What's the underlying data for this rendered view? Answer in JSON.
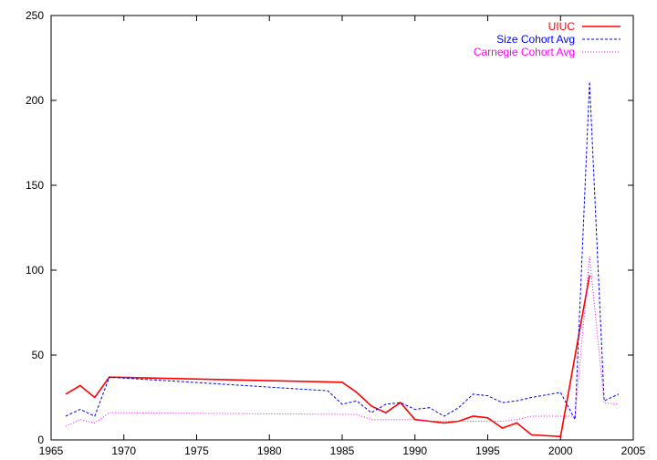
{
  "chart_data": {
    "type": "line",
    "title": "",
    "xlabel": "",
    "ylabel": "",
    "xlim": [
      1966,
      2005
    ],
    "ylim": [
      0,
      250
    ],
    "x_ticks": [
      1965,
      1970,
      1975,
      1980,
      1985,
      1990,
      1995,
      2000,
      2005
    ],
    "y_ticks": [
      0,
      50,
      100,
      150,
      200,
      250
    ],
    "x_tick_labels": [
      "1965",
      "1970",
      "1975",
      "1980",
      "1985",
      "1990",
      "1995",
      "2000",
      "2005"
    ],
    "y_tick_labels": [
      "0",
      "50",
      "100",
      "150",
      "200",
      "250"
    ],
    "grid": false,
    "legend_position": "top-right",
    "series": [
      {
        "name": "UIUC",
        "color": "#ff0000",
        "style": "solid",
        "points": [
          [
            1966,
            27
          ],
          [
            1967,
            32
          ],
          [
            1968,
            25
          ],
          [
            1969,
            37
          ],
          [
            1985,
            34
          ],
          [
            1986,
            28
          ],
          [
            1987,
            20
          ],
          [
            1988,
            16
          ],
          [
            1989,
            22
          ],
          [
            1990,
            12
          ],
          [
            1991,
            11
          ],
          [
            1992,
            10
          ],
          [
            1993,
            11
          ],
          [
            1994,
            14
          ],
          [
            1995,
            13
          ],
          [
            1996,
            7
          ],
          [
            1997,
            10
          ],
          [
            1998,
            3
          ],
          [
            2000,
            2
          ],
          [
            2002,
            97
          ]
        ]
      },
      {
        "name": "Size Cohort Avg",
        "color": "#0000ff",
        "style": "dashed",
        "points": [
          [
            1966,
            14
          ],
          [
            1967,
            18
          ],
          [
            1968,
            14
          ],
          [
            1969,
            37
          ],
          [
            1984,
            29
          ],
          [
            1985,
            21
          ],
          [
            1986,
            23
          ],
          [
            1987,
            16
          ],
          [
            1988,
            21
          ],
          [
            1989,
            22
          ],
          [
            1990,
            18
          ],
          [
            1991,
            19
          ],
          [
            1992,
            14
          ],
          [
            1993,
            19
          ],
          [
            1994,
            27
          ],
          [
            1995,
            26
          ],
          [
            1996,
            22
          ],
          [
            1997,
            23
          ],
          [
            1998,
            25
          ],
          [
            2000,
            28
          ],
          [
            2001,
            12
          ],
          [
            2002,
            211
          ],
          [
            2003,
            23
          ],
          [
            2004,
            27
          ]
        ]
      },
      {
        "name": "Carnegie Cohort Avg",
        "color": "#ff00ff",
        "style": "dotted",
        "points": [
          [
            1966,
            8
          ],
          [
            1967,
            12
          ],
          [
            1968,
            10
          ],
          [
            1969,
            16
          ],
          [
            1986,
            15
          ],
          [
            1987,
            12
          ],
          [
            1990,
            12
          ],
          [
            1991,
            11
          ],
          [
            1996,
            11
          ],
          [
            1997,
            12
          ],
          [
            1998,
            14
          ],
          [
            2001,
            14
          ],
          [
            2002,
            108
          ],
          [
            2003,
            22
          ],
          [
            2004,
            21
          ]
        ]
      }
    ]
  }
}
